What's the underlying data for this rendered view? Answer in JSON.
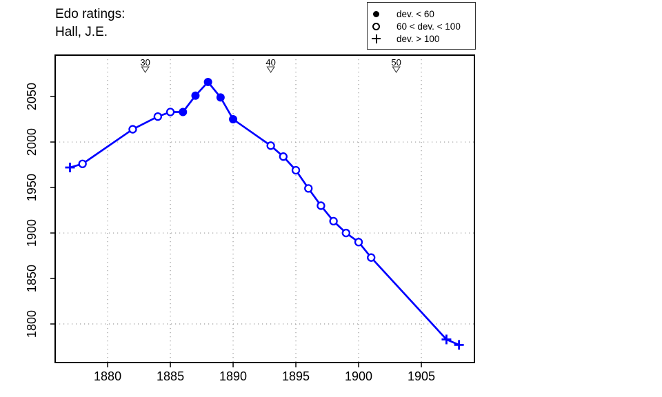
{
  "chart_data": {
    "type": "line",
    "title": "Edo ratings:",
    "subtitle": "Hall, J.E.",
    "series_color": "#0000ff",
    "grid_color": "#9a9a9a",
    "axis_color": "#000000",
    "xlim": [
      1875.82,
      1909.23
    ],
    "ylim": [
      1757.6,
      2095.5
    ],
    "x_ticks": [
      1880,
      1885,
      1890,
      1895,
      1900,
      1905
    ],
    "y_ticks": [
      1800,
      1850,
      1900,
      1950,
      2000,
      2050
    ],
    "x_gridlines": [
      1880,
      1885,
      1890,
      1895,
      1900,
      1905
    ],
    "y_gridlines": [
      1800,
      1900,
      2000
    ],
    "age_markers": [
      {
        "age": "30",
        "year": 1883
      },
      {
        "age": "40",
        "year": 1893
      },
      {
        "age": "50",
        "year": 1903
      }
    ],
    "legend": [
      {
        "symbol": "filled-circle",
        "label": "dev. < 60"
      },
      {
        "symbol": "open-circle",
        "label": "60 < dev. < 100"
      },
      {
        "symbol": "plus",
        "label": "dev. > 100"
      }
    ],
    "points": [
      {
        "year": 1877,
        "rating": 1972,
        "marker": "plus"
      },
      {
        "year": 1878,
        "rating": 1976,
        "marker": "open-circle"
      },
      {
        "year": 1882,
        "rating": 2014,
        "marker": "open-circle"
      },
      {
        "year": 1884,
        "rating": 2028,
        "marker": "open-circle"
      },
      {
        "year": 1885,
        "rating": 2033,
        "marker": "open-circle"
      },
      {
        "year": 1886,
        "rating": 2033,
        "marker": "filled-circle"
      },
      {
        "year": 1887,
        "rating": 2051,
        "marker": "filled-circle"
      },
      {
        "year": 1888,
        "rating": 2066,
        "marker": "filled-circle"
      },
      {
        "year": 1889,
        "rating": 2049,
        "marker": "filled-circle"
      },
      {
        "year": 1890,
        "rating": 2025,
        "marker": "filled-circle"
      },
      {
        "year": 1893,
        "rating": 1996,
        "marker": "open-circle"
      },
      {
        "year": 1894,
        "rating": 1984,
        "marker": "open-circle"
      },
      {
        "year": 1895,
        "rating": 1969,
        "marker": "open-circle"
      },
      {
        "year": 1896,
        "rating": 1949,
        "marker": "open-circle"
      },
      {
        "year": 1897,
        "rating": 1930,
        "marker": "open-circle"
      },
      {
        "year": 1898,
        "rating": 1913,
        "marker": "open-circle"
      },
      {
        "year": 1899,
        "rating": 1900,
        "marker": "open-circle"
      },
      {
        "year": 1900,
        "rating": 1890,
        "marker": "open-circle"
      },
      {
        "year": 1901,
        "rating": 1873,
        "marker": "open-circle"
      },
      {
        "year": 1907,
        "rating": 1783,
        "marker": "plus"
      },
      {
        "year": 1908,
        "rating": 1777,
        "marker": "plus"
      }
    ]
  }
}
